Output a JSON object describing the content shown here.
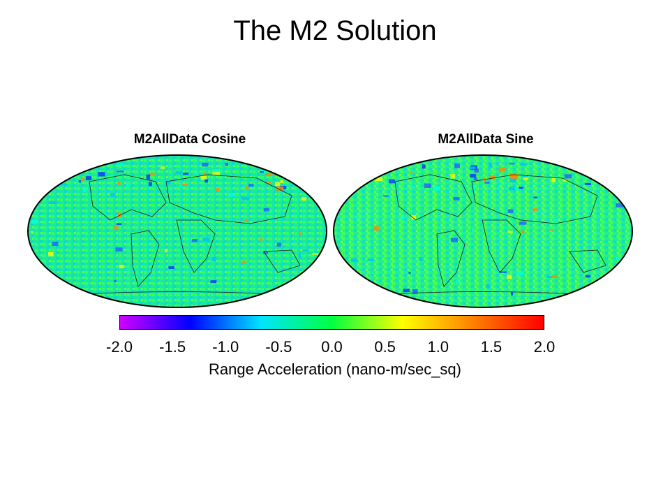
{
  "title": "The M2 Solution",
  "panels": [
    {
      "title": "M2AllData Cosine"
    },
    {
      "title": "M2AllData Sine"
    }
  ],
  "colorbar": {
    "label": "Range Acceleration (nano-m/sec_sq)",
    "min": -2.0,
    "max": 2.0,
    "ticks": [
      "-2.0",
      "-1.5",
      "-1.0",
      "-0.5",
      "0.0",
      "0.5",
      "1.0",
      "1.5",
      "2.0"
    ],
    "colors": [
      "#d000ff",
      "#0000ff",
      "#00e5ff",
      "#00ff40",
      "#ffff00",
      "#ff8000",
      "#ff0000"
    ]
  },
  "map": {
    "projection": "robinson-like oval",
    "background_value": 0.3
  }
}
